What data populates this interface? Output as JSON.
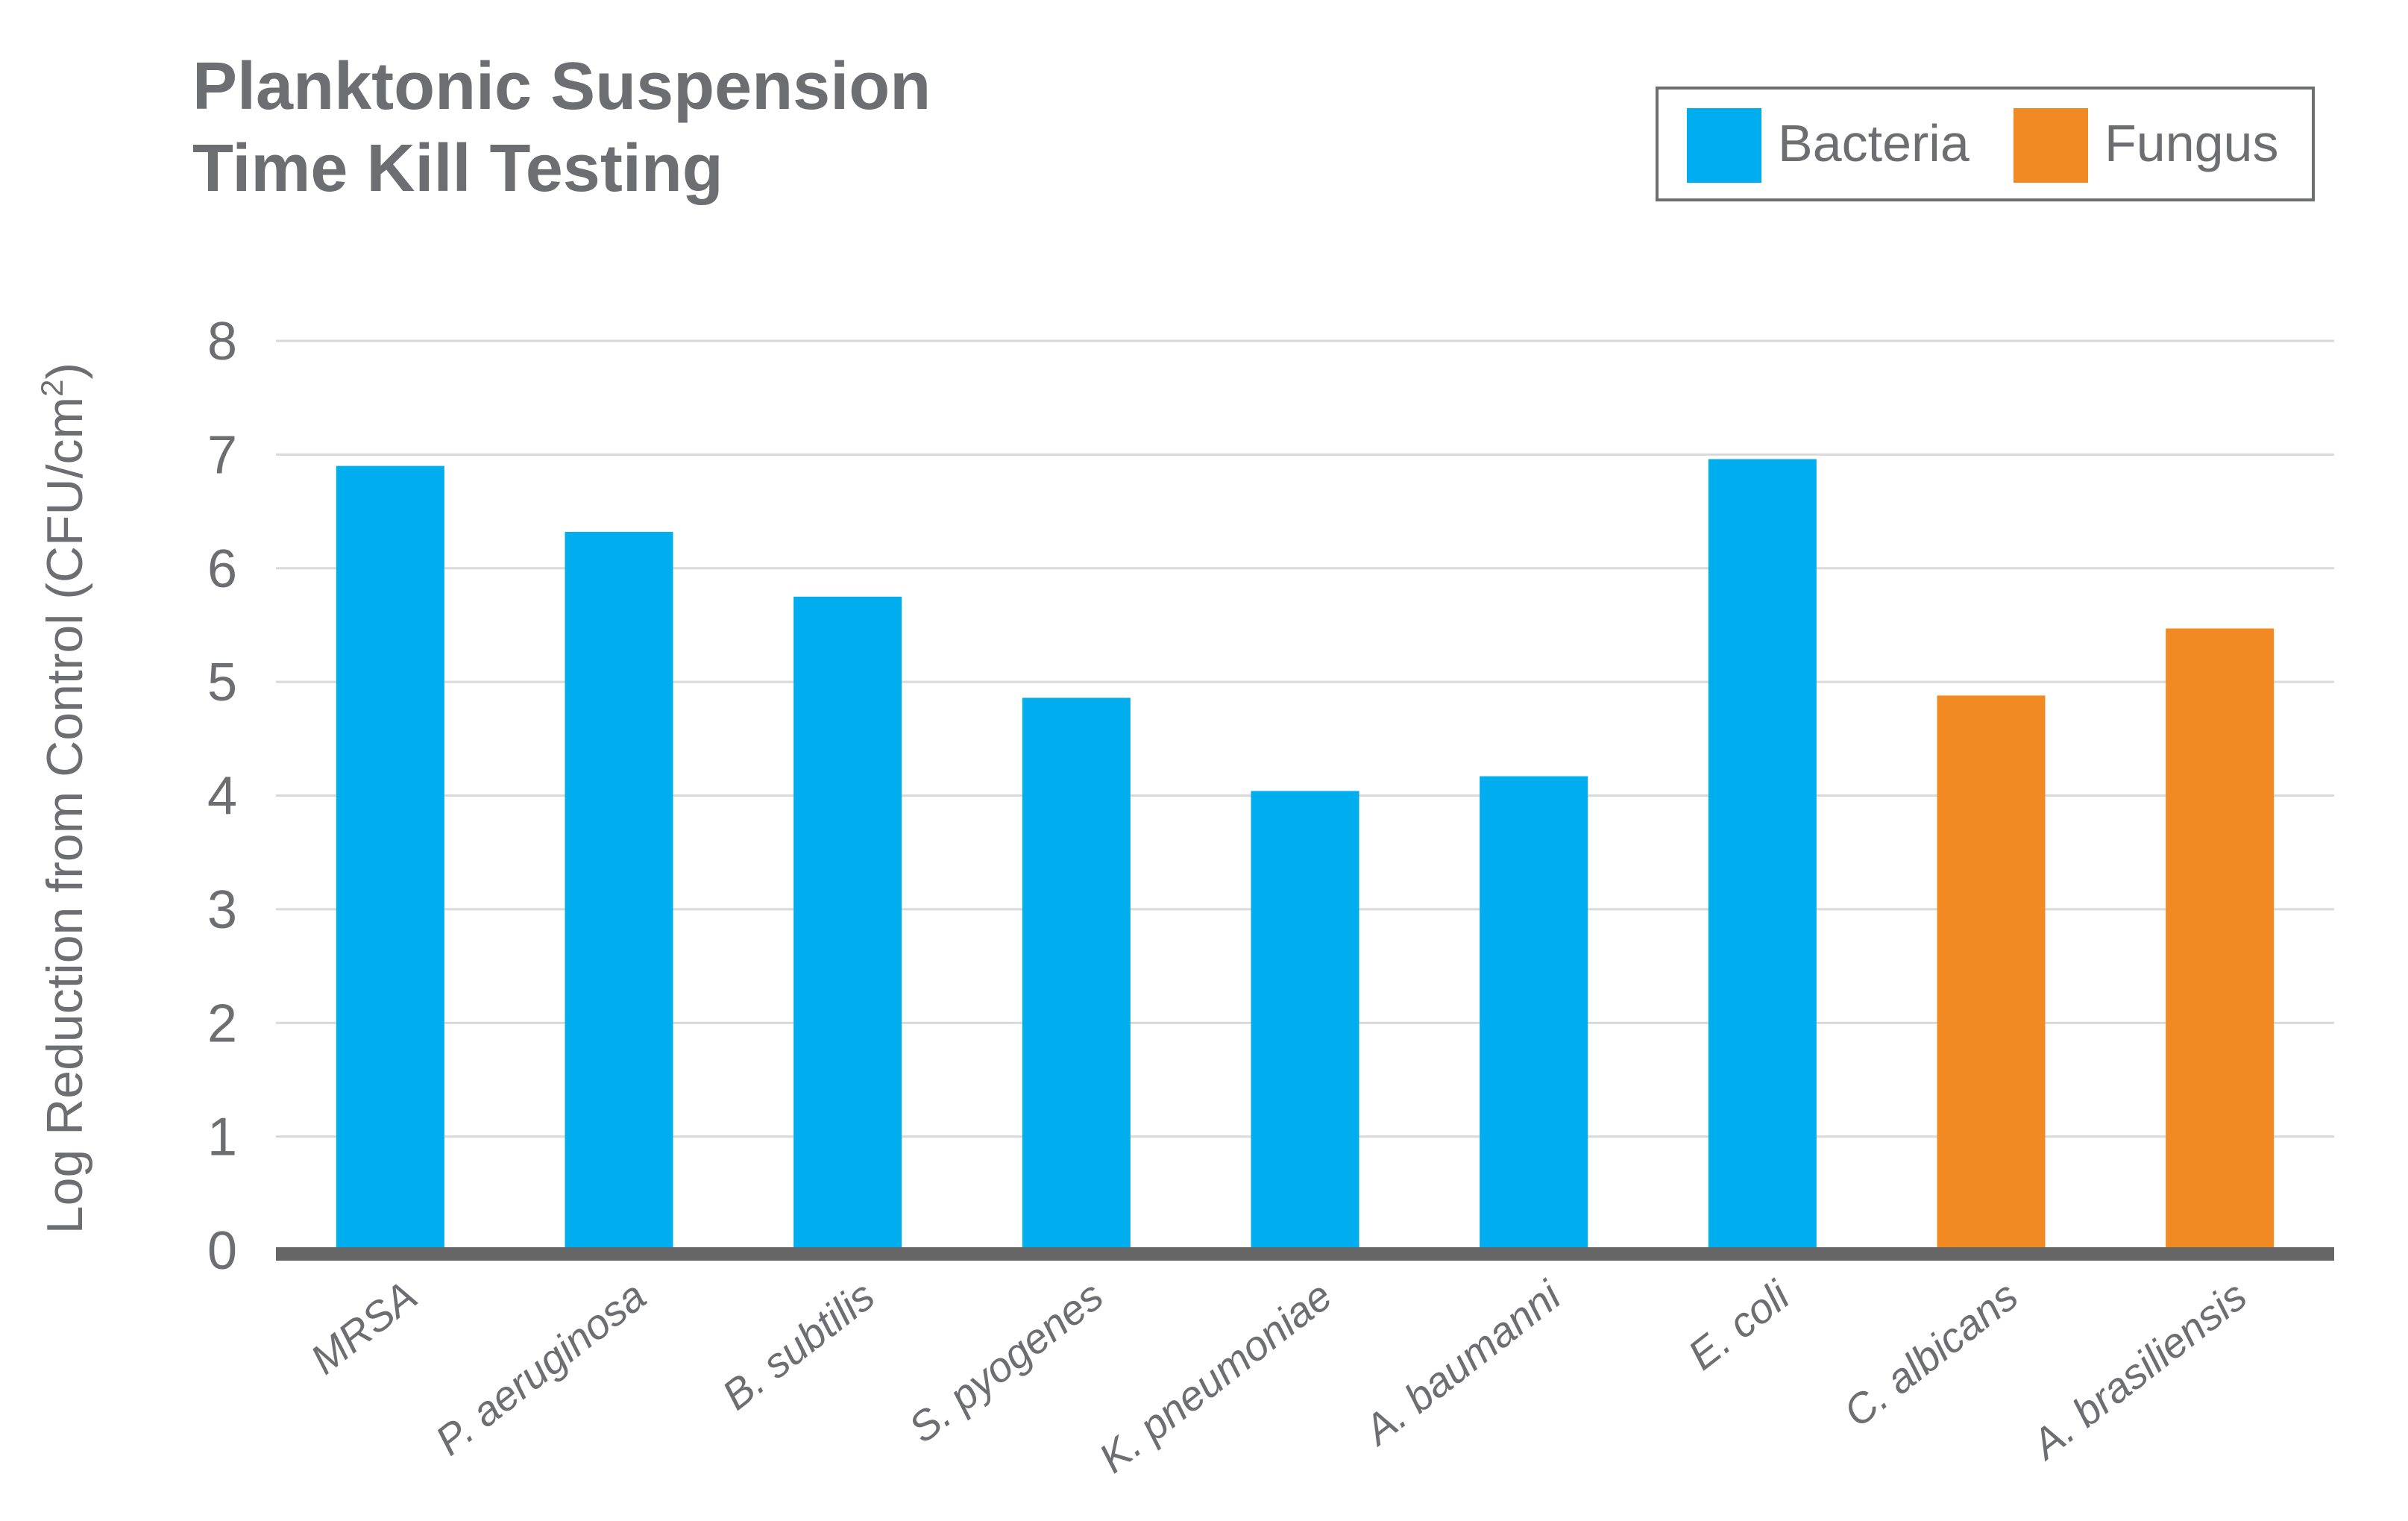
{
  "chart_data": {
    "type": "bar",
    "title_lines": [
      "Planktonic Suspension",
      "Time Kill Testing"
    ],
    "ylabel_main": "Log Reduction from Control (CFU/cm",
    "ylabel_sup": "2",
    "ylabel_tail": ")",
    "ylim": [
      0,
      8
    ],
    "yticks": [
      "0",
      "1",
      "2",
      "3",
      "4",
      "5",
      "6",
      "7",
      "8"
    ],
    "grid": true,
    "legend_position": "top-right",
    "series": [
      {
        "name": "Bacteria",
        "color": "#00aeef"
      },
      {
        "name": "Fungus",
        "color": "#f18a22"
      }
    ],
    "categories": [
      "MRSA",
      "P. aeruginosa",
      "B. subtilis",
      "S. pyogenes",
      "K. pneumoniae",
      "A. baumanni",
      "E. coli",
      "C. albicans",
      "A. brasiliensis"
    ],
    "values": [
      6.9,
      6.32,
      5.75,
      4.86,
      4.04,
      4.17,
      6.96,
      4.88,
      5.47
    ],
    "groups": [
      "Bacteria",
      "Bacteria",
      "Bacteria",
      "Bacteria",
      "Bacteria",
      "Bacteria",
      "Bacteria",
      "Fungus",
      "Fungus"
    ]
  }
}
